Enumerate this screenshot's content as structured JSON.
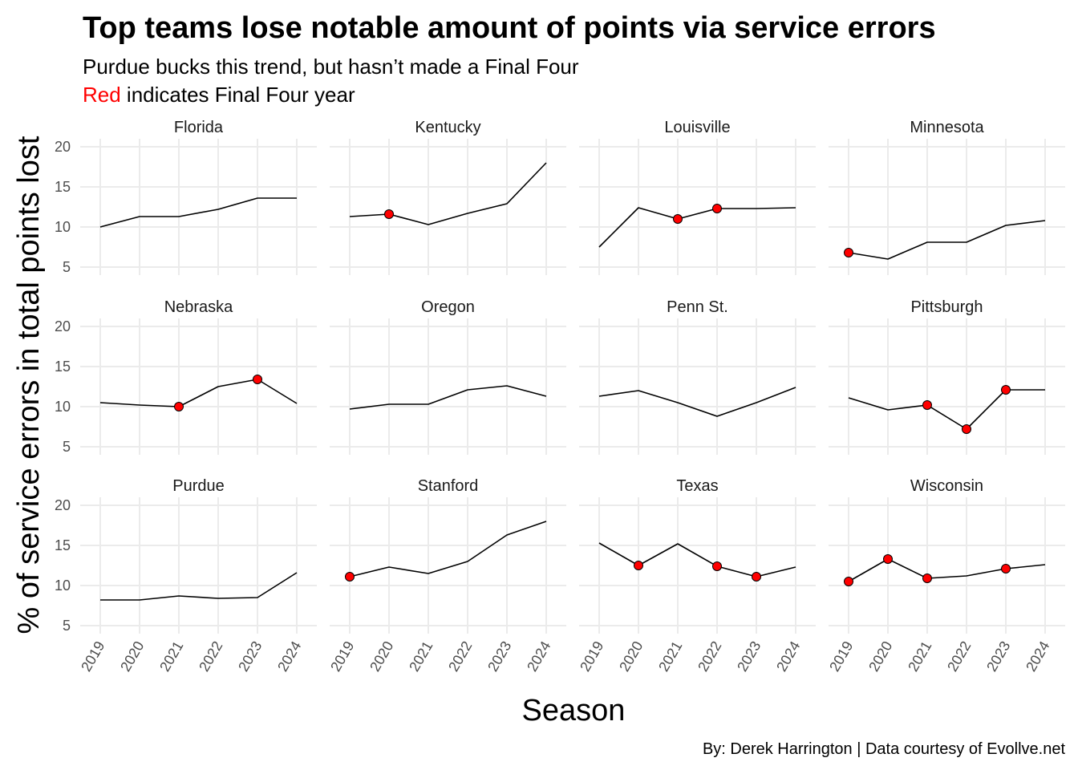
{
  "title": "Top teams lose notable amount of points via service errors",
  "subtitle_line1": "Purdue bucks this trend, but hasn’t made a Final Four",
  "subtitle_line2_red": "Red",
  "subtitle_line2_rest": " indicates Final Four year",
  "caption": "By: Derek Harrington  |  Data courtesy of Evollve.net",
  "colors": {
    "line": "#000000",
    "highlight": "#ff0000",
    "grid": "#ebebeb",
    "tick_text": "#4d4d4d"
  },
  "chart_data": {
    "type": "line",
    "facet": "small-multiples",
    "grid": true,
    "xlabel": "Season",
    "ylabel": "% of service errors in total points lost",
    "x": [
      "2019",
      "2020",
      "2021",
      "2022",
      "2023",
      "2024"
    ],
    "ylim": [
      4,
      21
    ],
    "yticks": [
      5,
      10,
      15,
      20
    ],
    "panels": [
      {
        "name": "Florida",
        "values": [
          10.0,
          11.3,
          11.3,
          12.2,
          13.6,
          13.6
        ],
        "final_four": []
      },
      {
        "name": "Kentucky",
        "values": [
          11.3,
          11.6,
          10.3,
          11.7,
          12.9,
          18.0
        ],
        "final_four": [
          "2020"
        ]
      },
      {
        "name": "Louisville",
        "values": [
          7.5,
          12.4,
          11.0,
          12.3,
          12.3,
          12.4
        ],
        "final_four": [
          "2021",
          "2022"
        ]
      },
      {
        "name": "Minnesota",
        "values": [
          6.8,
          6.0,
          8.1,
          8.1,
          10.2,
          10.8
        ],
        "final_four": [
          "2019"
        ]
      },
      {
        "name": "Nebraska",
        "values": [
          10.5,
          10.2,
          10.0,
          12.5,
          13.4,
          10.4
        ],
        "final_four": [
          "2021",
          "2023"
        ]
      },
      {
        "name": "Oregon",
        "values": [
          9.7,
          10.3,
          10.3,
          12.1,
          12.6,
          11.3
        ],
        "final_four": []
      },
      {
        "name": "Penn St.",
        "values": [
          11.3,
          12.0,
          10.5,
          8.8,
          10.5,
          12.4
        ],
        "final_four": []
      },
      {
        "name": "Pittsburgh",
        "values": [
          11.1,
          9.6,
          10.2,
          7.2,
          12.1,
          12.1
        ],
        "final_four": [
          "2021",
          "2022",
          "2023"
        ]
      },
      {
        "name": "Purdue",
        "values": [
          8.2,
          8.2,
          8.7,
          8.4,
          8.5,
          11.6
        ],
        "final_four": []
      },
      {
        "name": "Stanford",
        "values": [
          11.1,
          12.3,
          11.5,
          13.0,
          16.3,
          18.0
        ],
        "final_four": [
          "2019"
        ]
      },
      {
        "name": "Texas",
        "values": [
          15.3,
          12.5,
          15.2,
          12.4,
          11.1,
          12.3
        ],
        "final_four": [
          "2020",
          "2022",
          "2023"
        ]
      },
      {
        "name": "Wisconsin",
        "values": [
          10.5,
          13.3,
          10.9,
          11.2,
          12.1,
          12.6
        ],
        "final_four": [
          "2019",
          "2020",
          "2021",
          "2023"
        ]
      }
    ]
  }
}
